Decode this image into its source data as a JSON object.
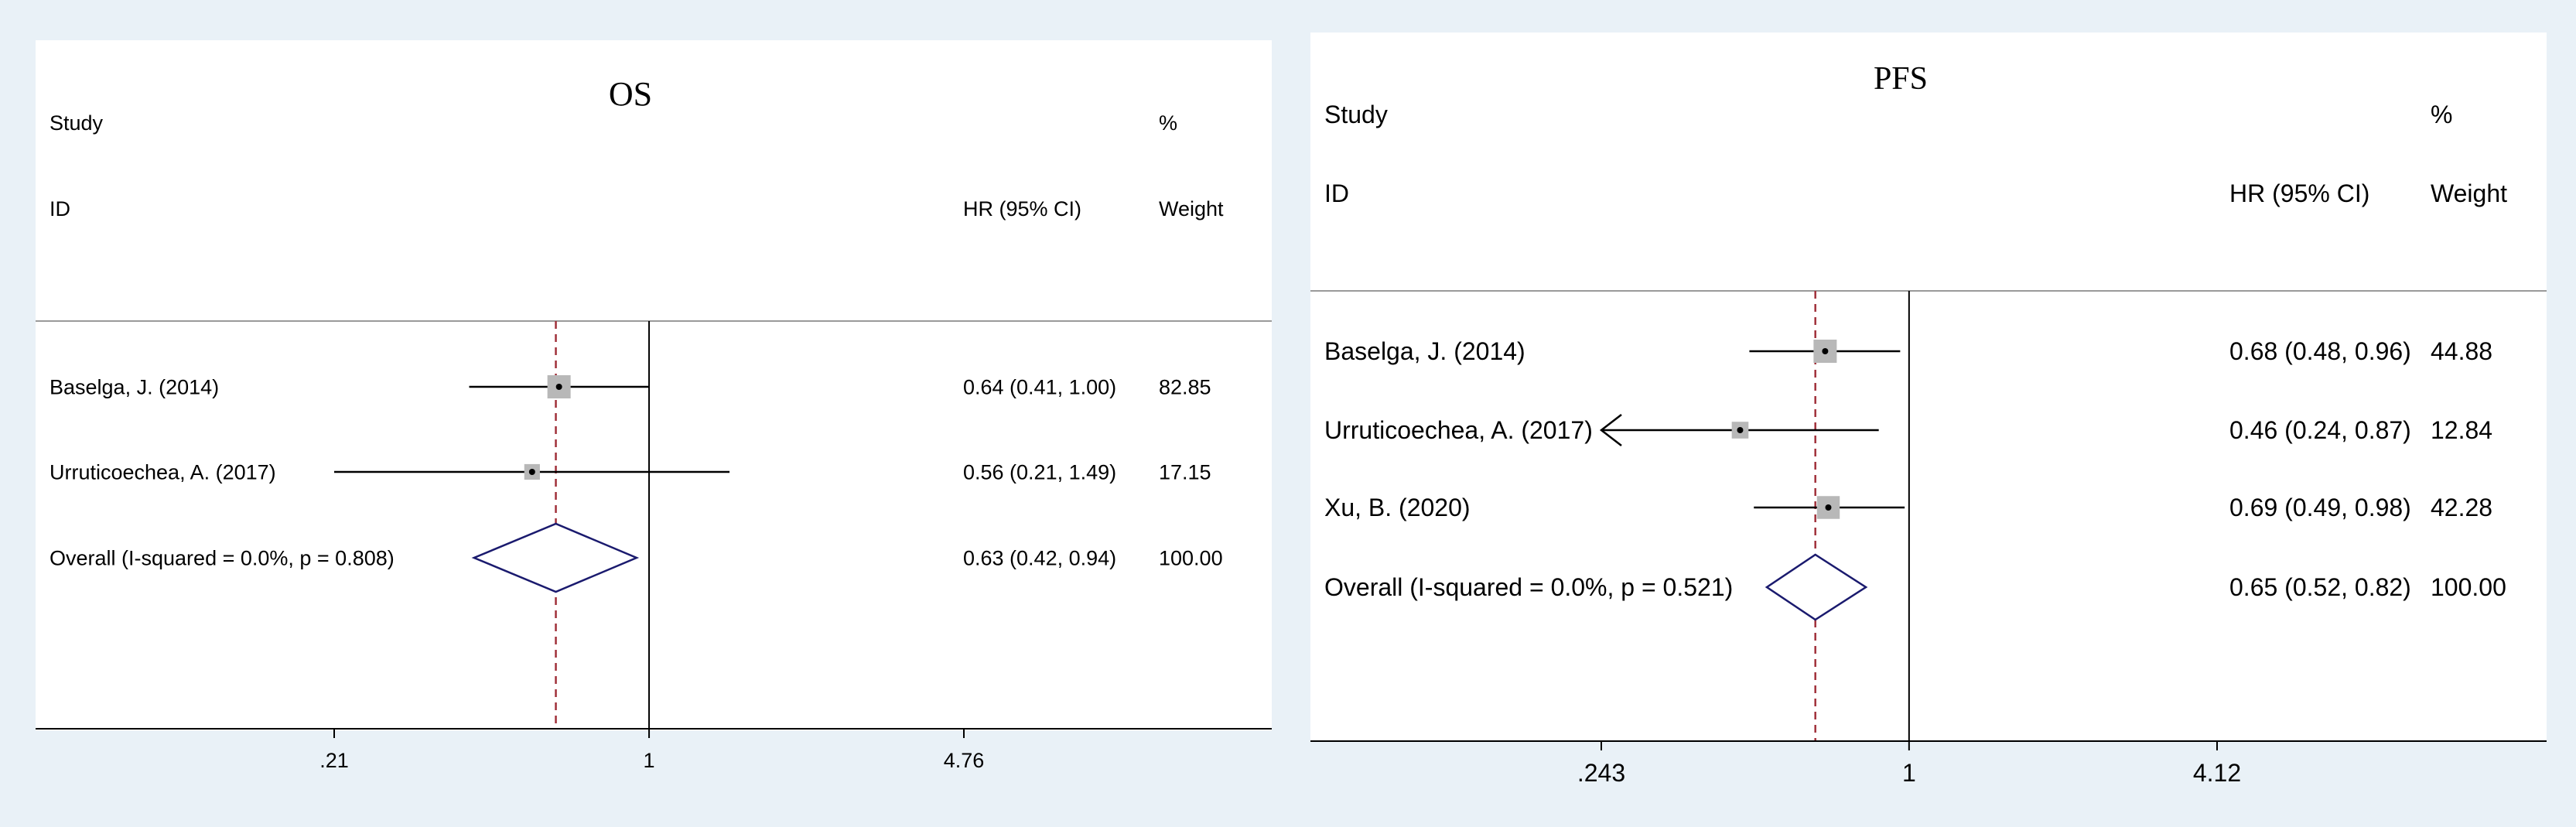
{
  "chart_data": [
    {
      "type": "forest",
      "title": "OS",
      "header": {
        "study": "Study",
        "id": "ID",
        "effect": "HR (95% CI)",
        "pct": "%",
        "weight": "Weight"
      },
      "scale": "log",
      "null_value": 1,
      "pooled_estimate": 0.63,
      "ticks": [
        {
          "value": 0.21,
          "label": ".21"
        },
        {
          "value": 1,
          "label": "1"
        },
        {
          "value": 4.76,
          "label": "4.76"
        }
      ],
      "xlim": [
        0.21,
        4.76
      ],
      "studies": [
        {
          "label": "Baselga, J. (2014)",
          "hr": 0.64,
          "lower": 0.41,
          "upper": 1.0,
          "ci_text": "0.64 (0.41, 1.00)",
          "weight": "82.85"
        },
        {
          "label": "Urruticoechea, A. (2017)",
          "hr": 0.56,
          "lower": 0.21,
          "upper": 1.49,
          "ci_text": "0.56 (0.21, 1.49)",
          "weight": "17.15"
        }
      ],
      "overall": {
        "label": "Overall  (I-squared = 0.0%, p = 0.808)",
        "hr": 0.63,
        "lower": 0.42,
        "upper": 0.94,
        "ci_text": "0.63 (0.42, 0.94)",
        "weight": "100.00"
      }
    },
    {
      "type": "forest",
      "title": "PFS",
      "header": {
        "study": "Study",
        "id": "ID",
        "effect": "HR (95% CI)",
        "pct": "%",
        "weight": "Weight"
      },
      "scale": "log",
      "null_value": 1,
      "pooled_estimate": 0.65,
      "ticks": [
        {
          "value": 0.243,
          "label": ".243"
        },
        {
          "value": 1,
          "label": "1"
        },
        {
          "value": 4.12,
          "label": "4.12"
        }
      ],
      "xlim": [
        0.243,
        4.12
      ],
      "studies": [
        {
          "label": "Baselga, J. (2014)",
          "hr": 0.68,
          "lower": 0.48,
          "upper": 0.96,
          "ci_text": "0.68 (0.48, 0.96)",
          "weight": "44.88"
        },
        {
          "label": "Urruticoechea, A. (2017)",
          "hr": 0.46,
          "lower": 0.24,
          "upper": 0.87,
          "ci_text": "0.46 (0.24, 0.87)",
          "weight": "12.84",
          "lower_clipped": true
        },
        {
          "label": "Xu, B. (2020)",
          "hr": 0.69,
          "lower": 0.49,
          "upper": 0.98,
          "ci_text": "0.69 (0.49, 0.98)",
          "weight": "42.28"
        }
      ],
      "overall": {
        "label": "Overall  (I-squared = 0.0%, p = 0.521)",
        "hr": 0.65,
        "lower": 0.52,
        "upper": 0.82,
        "ci_text": "0.65 (0.52, 0.82)",
        "weight": "100.00"
      }
    }
  ],
  "colors": {
    "background": "#e9f1f7",
    "panel": "#ffffff",
    "line": "#000000",
    "pooled_line": "#a0303a",
    "diamond": "#1a1a6e",
    "weight_box": "#b8b8b8",
    "separator": "#9a9a9a"
  }
}
